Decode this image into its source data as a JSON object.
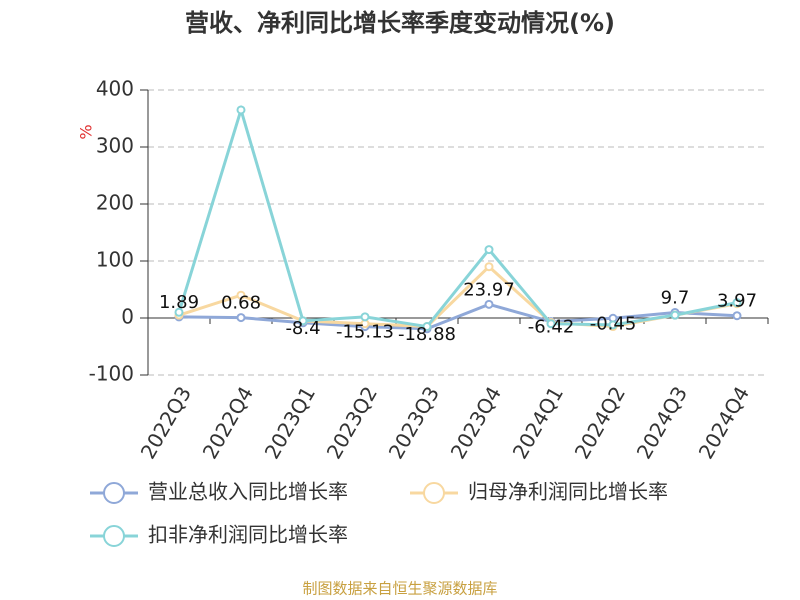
{
  "chart_data": {
    "type": "line",
    "title": "营收、净利同比增长率季度变动情况(%)",
    "y_label": "%",
    "source": "制图数据来自恒生聚源数据库",
    "categories": [
      "2022Q3",
      "2022Q4",
      "2023Q1",
      "2023Q2",
      "2023Q3",
      "2023Q4",
      "2024Q1",
      "2024Q2",
      "2024Q3",
      "2024Q4"
    ],
    "series": [
      {
        "name": "营业总收入同比增长率",
        "color": "#8fa8d8",
        "values": [
          1.89,
          0.68,
          -8.4,
          -15.13,
          -18.88,
          23.97,
          -6.42,
          -0.45,
          9.7,
          3.97
        ],
        "show_labels": true
      },
      {
        "name": "归母净利润同比增长率",
        "color": "#f8d8a0",
        "values": [
          5,
          40,
          -5,
          -10,
          -15,
          90,
          -8,
          -15,
          5,
          25
        ]
      },
      {
        "name": "扣非净利润同比增长率",
        "color": "#88d4d8",
        "values": [
          10,
          365,
          -5,
          2,
          -15,
          120,
          -10,
          -12,
          5,
          27
        ]
      }
    ],
    "ylim": [
      -100,
      400
    ],
    "yticks": [
      -100,
      0,
      100,
      200,
      300,
      400
    ],
    "grid": true
  }
}
